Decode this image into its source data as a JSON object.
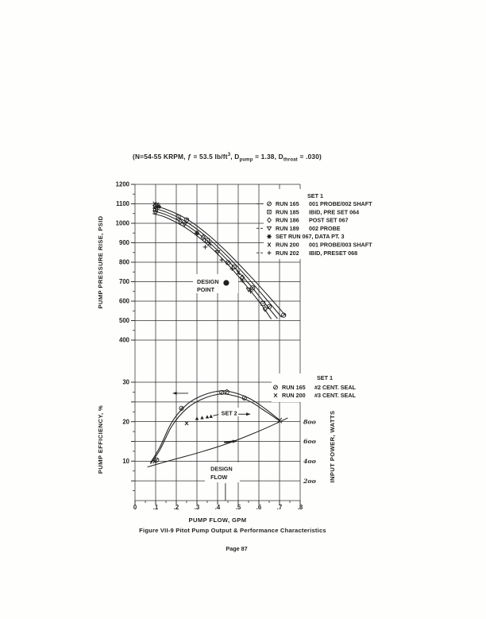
{
  "style": {
    "ink": "#1f1f1f",
    "grid": "#2e2e2e",
    "paper": "#fefefd",
    "hand_ink": "#2b2b2b"
  },
  "header": {
    "parts": [
      "(N=54-55 KRPM, ƒ = 53.5 lb/ft",
      "3",
      ", D",
      "pump",
      " = 1.38, D",
      "throat",
      " = .030)"
    ]
  },
  "footer": {
    "caption": "Figure VII-9  Pitot Pump Output & Performance Characteristics",
    "page_number": "Page 87"
  },
  "chart_data": [
    {
      "type": "line",
      "title": "Pitot pump pressure rise vs flow",
      "xlabel": "PUMP FLOW, GPM",
      "ylabel": "PUMP PRESSURE RISE, PSID",
      "xlim": [
        0,
        0.8
      ],
      "ylim": [
        400,
        1200
      ],
      "grid": true,
      "x_ticks": [
        "0",
        ".1",
        ".2",
        ".3",
        ".4",
        ".5",
        ".6",
        ".7",
        ".8"
      ],
      "y_ticks": [
        1200,
        1100,
        1000,
        900,
        800,
        700,
        600,
        500,
        400
      ],
      "legend": {
        "title": "SET 1",
        "position": "right",
        "entries": [
          {
            "sym": "circle-slash",
            "run": "RUN 165",
            "desc": "001 PROBE/002 SHAFT",
            "leader": true
          },
          {
            "sym": "square-dot",
            "run": "RUN 185",
            "desc": "IBID, PRE SET 064",
            "leader": false
          },
          {
            "sym": "diamond",
            "run": "RUN 186",
            "desc": "POST SET 067",
            "leader": false
          },
          {
            "sym": "triangle-down",
            "run": "RUN 189",
            "desc": "002 PROBE",
            "leader": true
          },
          {
            "sym": "star",
            "run": "SET RUN 067, DATA PT. 3",
            "desc": "",
            "leader": false
          },
          {
            "sym": "x-slash",
            "run": "RUN 200",
            "desc": "001 PROBE/003 SHAFT",
            "leader": false
          },
          {
            "sym": "plus",
            "run": "RUN 202",
            "desc": "IBID, PRESET 068",
            "leader": true
          }
        ]
      },
      "series": [
        {
          "name": "curve-1",
          "x": [
            0.085,
            0.15,
            0.25,
            0.35,
            0.45,
            0.55,
            0.65,
            0.73
          ],
          "y": [
            1092,
            1072,
            1022,
            945,
            848,
            738,
            622,
            525
          ]
        },
        {
          "name": "curve-2",
          "x": [
            0.085,
            0.15,
            0.25,
            0.35,
            0.45,
            0.55,
            0.64,
            0.71
          ],
          "y": [
            1078,
            1058,
            1006,
            928,
            828,
            715,
            605,
            518
          ]
        },
        {
          "name": "curve-3",
          "x": [
            0.085,
            0.15,
            0.25,
            0.35,
            0.45,
            0.55,
            0.63,
            0.69
          ],
          "y": [
            1064,
            1044,
            990,
            910,
            808,
            692,
            588,
            510
          ]
        },
        {
          "name": "curve-4",
          "x": [
            0.085,
            0.15,
            0.25,
            0.35,
            0.45,
            0.54,
            0.61,
            0.66
          ],
          "y": [
            1050,
            1030,
            974,
            892,
            788,
            678,
            585,
            508
          ]
        }
      ],
      "points": [
        {
          "sym": "circle-slash",
          "x": 0.1,
          "y": 1088
        },
        {
          "sym": "circle-slash",
          "x": 0.25,
          "y": 1018
        },
        {
          "sym": "circle-slash",
          "x": 0.45,
          "y": 798
        },
        {
          "sym": "circle-slash",
          "x": 0.57,
          "y": 668
        },
        {
          "sym": "circle-slash",
          "x": 0.65,
          "y": 572
        },
        {
          "sym": "circle-slash",
          "x": 0.72,
          "y": 528
        },
        {
          "sym": "square-dot",
          "x": 0.1,
          "y": 1072
        },
        {
          "sym": "square-dot",
          "x": 0.21,
          "y": 1032
        },
        {
          "sym": "square-dot",
          "x": 0.35,
          "y": 912
        },
        {
          "sym": "square-dot",
          "x": 0.48,
          "y": 775
        },
        {
          "sym": "square-dot",
          "x": 0.62,
          "y": 588
        },
        {
          "sym": "diamond",
          "x": 0.1,
          "y": 1058
        },
        {
          "sym": "diamond",
          "x": 0.22,
          "y": 1008
        },
        {
          "sym": "diamond",
          "x": 0.33,
          "y": 928
        },
        {
          "sym": "diamond",
          "x": 0.52,
          "y": 722
        },
        {
          "sym": "diamond",
          "x": 0.63,
          "y": 560
        },
        {
          "sym": "triangle-down",
          "x": 0.105,
          "y": 1095
        },
        {
          "sym": "triangle-down",
          "x": 0.24,
          "y": 996
        },
        {
          "sym": "triangle-down",
          "x": 0.4,
          "y": 852
        },
        {
          "sym": "triangle-down",
          "x": 0.55,
          "y": 660
        },
        {
          "sym": "star",
          "x": 0.115,
          "y": 1086
        },
        {
          "sym": "star",
          "x": 0.3,
          "y": 950
        },
        {
          "sym": "x-slash",
          "x": 0.095,
          "y": 1100
        },
        {
          "sym": "x-slash",
          "x": 0.36,
          "y": 896
        },
        {
          "sym": "x-slash",
          "x": 0.5,
          "y": 746
        },
        {
          "sym": "plus",
          "x": 0.34,
          "y": 878
        },
        {
          "sym": "plus",
          "x": 0.42,
          "y": 812
        },
        {
          "sym": "plus",
          "x": 0.47,
          "y": 766
        },
        {
          "sym": "plus",
          "x": 0.52,
          "y": 706
        },
        {
          "sym": "plus",
          "x": 0.56,
          "y": 650
        }
      ],
      "annotations": [
        {
          "type": "text",
          "text": "DESIGN",
          "x": 0.3,
          "y": 690,
          "anchor": "start"
        },
        {
          "type": "text",
          "text": "POINT",
          "x": 0.3,
          "y": 650,
          "anchor": "start"
        },
        {
          "type": "dot",
          "x": 0.442,
          "y": 694
        }
      ]
    },
    {
      "type": "line",
      "title": "Pitot pump efficiency and input power vs flow",
      "xlabel": "PUMP FLOW, GPM",
      "ylabel": "PUMP EFFICIENCY, %",
      "ylabel_right": "INPUT POWER, WATTS",
      "xlim": [
        0,
        0.8
      ],
      "ylim": [
        0,
        30
      ],
      "ylim_right": [
        0,
        1200
      ],
      "grid": true,
      "x_ticks": [
        "0",
        ".1",
        ".2",
        ".3",
        ".4",
        ".5",
        ".6",
        ".7",
        ".8"
      ],
      "y_ticks_left": [
        30,
        20,
        10
      ],
      "y_ticks_right": [
        {
          "label": "8oo",
          "value": 800
        },
        {
          "label": "6oo",
          "value": 600
        },
        {
          "label": "4oo",
          "value": 400
        },
        {
          "label": "2oo",
          "value": 200
        }
      ],
      "legend": {
        "title": "SET 1",
        "position": "right",
        "entries": [
          {
            "sym": "circle-slash",
            "run": "RUN 165",
            "desc": "#2 CENT. SEAL",
            "leader": false
          },
          {
            "sym": "x",
            "run": "RUN 200",
            "desc": "#3 CENT. SEAL",
            "leader": false
          }
        ]
      },
      "series": [
        {
          "name": "efficiency-run-165",
          "x": [
            0.075,
            0.12,
            0.18,
            0.25,
            0.32,
            0.4,
            0.46,
            0.55,
            0.63,
            0.7
          ],
          "y": [
            9.6,
            13.5,
            20.0,
            24.3,
            26.5,
            27.7,
            27.6,
            26.0,
            23.3,
            20.4
          ]
        },
        {
          "name": "efficiency-run-200",
          "x": [
            0.075,
            0.12,
            0.18,
            0.25,
            0.32,
            0.4,
            0.46,
            0.55,
            0.63,
            0.7
          ],
          "y": [
            9.3,
            12.8,
            19.0,
            23.3,
            25.6,
            26.9,
            26.8,
            25.3,
            22.7,
            20.2
          ]
        },
        {
          "name": "input-power",
          "axis": "watts",
          "x": [
            0.06,
            0.15,
            0.25,
            0.35,
            0.45,
            0.55,
            0.65,
            0.74
          ],
          "y": [
            340,
            395,
            452,
            512,
            580,
            660,
            750,
            838
          ]
        }
      ],
      "points": [
        {
          "sym": "circle-slash",
          "x": 0.105,
          "y": 10.3
        },
        {
          "sym": "circle-slash",
          "x": 0.225,
          "y": 23.4
        },
        {
          "sym": "circle-slash",
          "x": 0.42,
          "y": 27.4
        },
        {
          "sym": "circle-slash",
          "x": 0.445,
          "y": 27.55
        },
        {
          "sym": "circle-slash",
          "x": 0.53,
          "y": 26.0
        },
        {
          "sym": "x",
          "x": 0.095,
          "y": 9.9
        },
        {
          "sym": "x",
          "x": 0.25,
          "y": 19.6
        },
        {
          "sym": "x",
          "x": 0.7,
          "y": 20.3
        },
        {
          "sym": "triangle-up",
          "x": 0.3,
          "y": 20.8
        },
        {
          "sym": "triangle-up",
          "x": 0.325,
          "y": 21.0
        },
        {
          "sym": "triangle-up",
          "x": 0.35,
          "y": 21.2
        },
        {
          "sym": "triangle-up",
          "x": 0.368,
          "y": 21.35
        }
      ],
      "annotations": [
        {
          "type": "dash",
          "x1": 0.378,
          "y1": 21.5,
          "x2": 0.405,
          "y2": 21.8
        },
        {
          "type": "text",
          "text": "SET 2",
          "x": 0.418,
          "y": 21.6,
          "anchor": "start"
        },
        {
          "type": "arrow",
          "x1": 0.5,
          "y1": 21.9,
          "x2": 0.558,
          "y2": 21.9
        },
        {
          "type": "text",
          "text": "DESIGN",
          "x": 0.366,
          "y": 7.6,
          "anchor": "start"
        },
        {
          "type": "text",
          "text": "FLOW",
          "x": 0.366,
          "y": 5.4,
          "anchor": "start"
        },
        {
          "type": "vline",
          "x": 0.438,
          "y1": 0,
          "y2": 4.4
        },
        {
          "type": "arrow",
          "x1": 0.258,
          "y1": 27.2,
          "x2": 0.183,
          "y2": 27.2
        },
        {
          "type": "arrow",
          "x1": 0.432,
          "y1": 14.75,
          "x2": 0.492,
          "y2": 15.1,
          "solid": true
        }
      ]
    }
  ]
}
